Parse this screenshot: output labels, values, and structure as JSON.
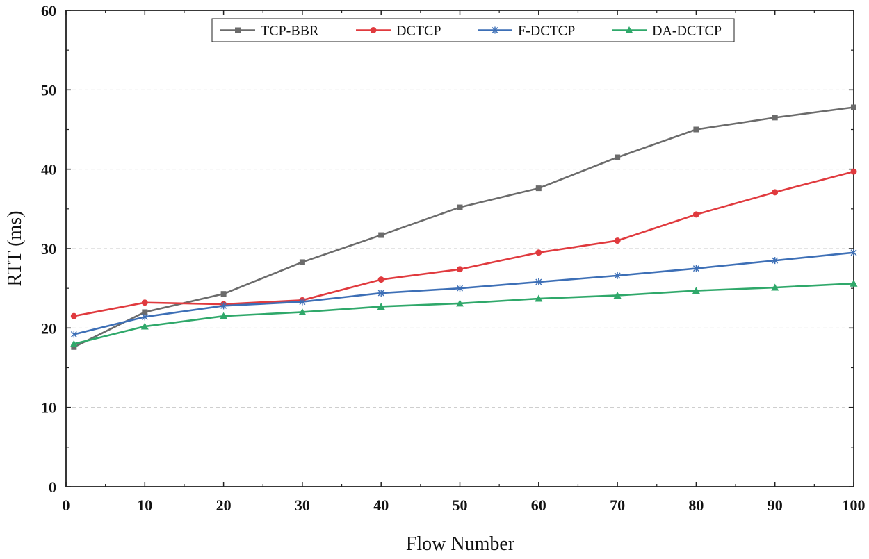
{
  "chart_data": {
    "type": "line",
    "xlabel": "Flow Number",
    "ylabel": "RTT (ms)",
    "xlim": [
      0,
      100
    ],
    "ylim": [
      0,
      60
    ],
    "x_ticks": [
      0,
      10,
      20,
      30,
      40,
      50,
      60,
      70,
      80,
      90,
      100
    ],
    "y_ticks": [
      0,
      10,
      20,
      30,
      40,
      50,
      60
    ],
    "grid": "horizontal dashed",
    "legend_position": "top-center",
    "x": [
      1,
      10,
      20,
      30,
      40,
      50,
      60,
      70,
      80,
      90,
      100
    ],
    "series": [
      {
        "name": "TCP-BBR",
        "color": "#6b6b6b",
        "marker": "square",
        "values": [
          17.6,
          22.0,
          24.3,
          28.3,
          31.7,
          35.2,
          37.6,
          41.5,
          45.0,
          46.5,
          47.8
        ]
      },
      {
        "name": "DCTCP",
        "color": "#e03a3e",
        "marker": "circle",
        "values": [
          21.5,
          23.2,
          23.0,
          23.5,
          26.1,
          27.4,
          29.5,
          31.0,
          34.3,
          37.1,
          39.7
        ]
      },
      {
        "name": "F-DCTCP",
        "color": "#3d6fb6",
        "marker": "asterisk",
        "values": [
          19.2,
          21.4,
          22.8,
          23.3,
          24.4,
          25.0,
          25.8,
          26.6,
          27.5,
          28.5,
          29.5
        ]
      },
      {
        "name": "DA-DCTCP",
        "color": "#2fa86a",
        "marker": "triangle",
        "values": [
          18.0,
          20.2,
          21.5,
          22.0,
          22.7,
          23.1,
          23.7,
          24.1,
          24.7,
          25.1,
          25.6
        ]
      }
    ]
  }
}
